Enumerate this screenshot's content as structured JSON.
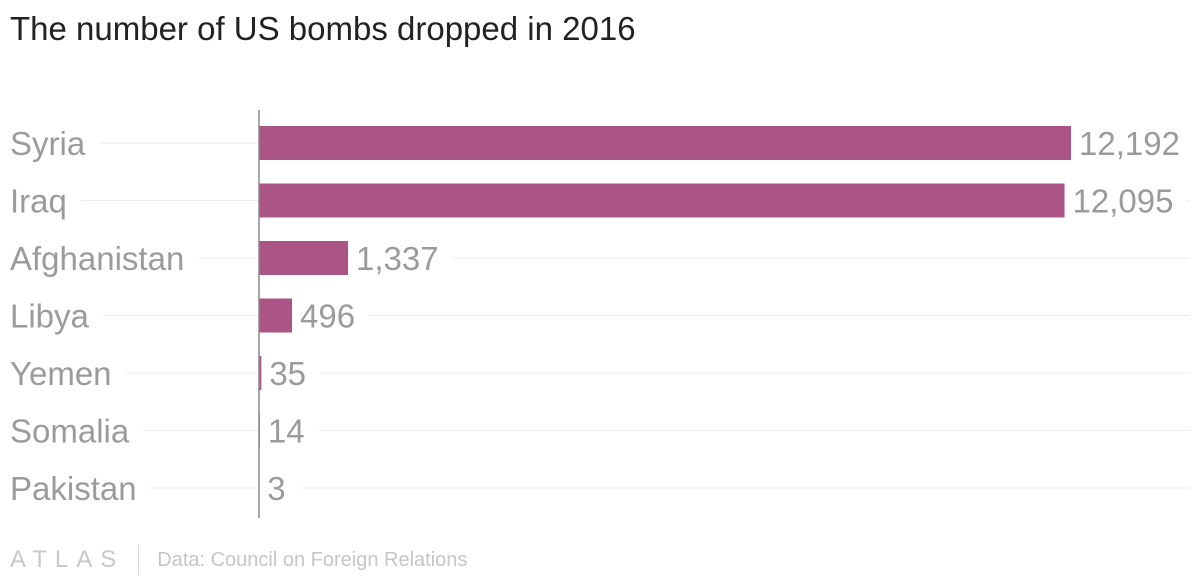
{
  "chart_data": {
    "type": "bar",
    "orientation": "horizontal",
    "title": "The number of US bombs dropped in 2016",
    "categories": [
      "Syria",
      "Iraq",
      "Afghanistan",
      "Libya",
      "Yemen",
      "Somalia",
      "Pakistan"
    ],
    "values": [
      12192,
      12095,
      1337,
      496,
      35,
      14,
      3
    ],
    "value_labels": [
      "12,192",
      "12,095",
      "1,337",
      "496",
      "35",
      "14",
      "3"
    ],
    "xlim": [
      0,
      12192
    ],
    "bar_color": "#ab5587",
    "grid": true,
    "legend": "none"
  },
  "footer": {
    "logo": "ATLAS",
    "source": "Data: Council on Foreign Relations"
  },
  "colors": {
    "title": "#222222",
    "category_label": "#9b9b9b",
    "value_label": "#9b9b9b",
    "gridline": "#ececec",
    "axis": "#8a8a8a"
  }
}
